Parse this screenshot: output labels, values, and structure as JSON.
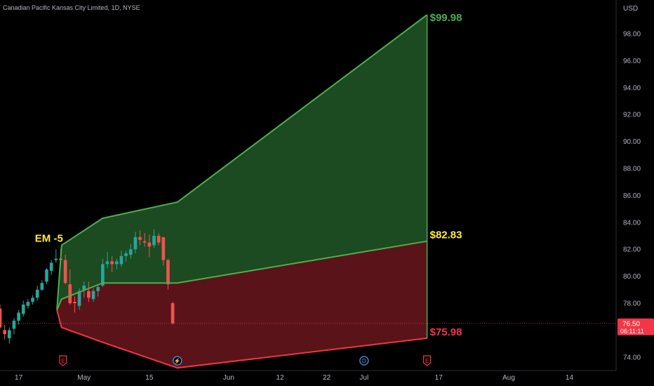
{
  "header": {
    "title": "Canadian Pacific Kansas City Limited, 1D, NYSE"
  },
  "axis": {
    "currency": "USD"
  },
  "chart_data": {
    "type": "candlestick_with_expected_move",
    "y_ticks": [
      "98.00",
      "96.00",
      "94.00",
      "92.00",
      "90.00",
      "88.00",
      "86.00",
      "84.00",
      "82.00",
      "80.00",
      "78.00",
      "76.00",
      "74.00"
    ],
    "ylim": [
      73.0,
      100.5
    ],
    "x_ticks": [
      {
        "label": "17",
        "day": 0
      },
      {
        "label": "May",
        "day": 14
      },
      {
        "label": "15",
        "day": 28
      },
      {
        "label": "Jun",
        "day": 45
      },
      {
        "label": "12",
        "day": 56
      },
      {
        "label": "22",
        "day": 66
      },
      {
        "label": "Jul",
        "day": 74
      },
      {
        "label": "17",
        "day": 90
      },
      {
        "label": "Aug",
        "day": 105
      },
      {
        "label": "14",
        "day": 118
      }
    ],
    "x_range_days": [
      -4,
      128
    ],
    "current_price": {
      "value": 76.5,
      "label": "76.50",
      "countdown": "06:11:11"
    },
    "expected_move": {
      "label": "EM -5",
      "upper": [
        [
          8.2,
          77.5
        ],
        [
          9.2,
          82.3
        ],
        [
          18,
          84.3
        ],
        [
          34,
          85.5
        ],
        [
          87.5,
          99.4
        ]
      ],
      "middle": [
        [
          8.2,
          77.5
        ],
        [
          9.2,
          78.3
        ],
        [
          18,
          79.5
        ],
        [
          34,
          79.5
        ],
        [
          87.5,
          82.6
        ]
      ],
      "lower": [
        [
          8.2,
          77.5
        ],
        [
          9.2,
          76.2
        ],
        [
          18,
          75.1
        ],
        [
          34,
          73.2
        ],
        [
          87.5,
          75.4
        ]
      ],
      "upper_label": "$99.98",
      "middle_label": "$82.83",
      "lower_label": "$75.98",
      "colors": {
        "upper_line": "#4caf50",
        "lower_line": "#f23645",
        "upper_fill": "#1c4a21",
        "lower_fill": "#5a1319",
        "middle_label": "#ffeb3b"
      }
    },
    "candles": [
      {
        "d": -4,
        "o": 77.6,
        "h": 77.9,
        "l": 76.1,
        "c": 76.2
      },
      {
        "d": -3,
        "o": 76.0,
        "h": 76.4,
        "l": 75.3,
        "c": 75.7
      },
      {
        "d": -2,
        "o": 75.4,
        "h": 76.2,
        "l": 75.0,
        "c": 76.0
      },
      {
        "d": -1,
        "o": 76.1,
        "h": 76.9,
        "l": 75.7,
        "c": 76.7
      },
      {
        "d": 0,
        "o": 76.7,
        "h": 77.5,
        "l": 76.4,
        "c": 77.3
      },
      {
        "d": 1,
        "o": 77.2,
        "h": 78.2,
        "l": 77.0,
        "c": 77.9
      },
      {
        "d": 2,
        "o": 77.8,
        "h": 78.3,
        "l": 77.6,
        "c": 78.1
      },
      {
        "d": 3,
        "o": 78.1,
        "h": 78.6,
        "l": 77.9,
        "c": 78.4
      },
      {
        "d": 4,
        "o": 78.4,
        "h": 79.3,
        "l": 78.2,
        "c": 79.0
      },
      {
        "d": 5,
        "o": 79.0,
        "h": 79.7,
        "l": 78.9,
        "c": 79.5
      },
      {
        "d": 6,
        "o": 79.6,
        "h": 80.6,
        "l": 79.4,
        "c": 80.5
      },
      {
        "d": 7,
        "o": 80.4,
        "h": 81.2,
        "l": 80.1,
        "c": 81.0
      },
      {
        "d": 8,
        "o": 81.2,
        "h": 82.0,
        "l": 81.0,
        "c": 81.3
      },
      {
        "d": 9,
        "o": 81.3,
        "h": 82.0,
        "l": 81.0,
        "c": 81.2
      },
      {
        "d": 10,
        "o": 81.2,
        "h": 81.6,
        "l": 79.4,
        "c": 79.5
      },
      {
        "d": 11,
        "o": 79.4,
        "h": 80.5,
        "l": 77.9,
        "c": 78.0
      },
      {
        "d": 12,
        "o": 78.1,
        "h": 78.5,
        "l": 77.3,
        "c": 78.0
      },
      {
        "d": 13,
        "o": 77.8,
        "h": 79.1,
        "l": 77.5,
        "c": 78.9
      },
      {
        "d": 14,
        "o": 79.0,
        "h": 79.6,
        "l": 78.4,
        "c": 79.3
      },
      {
        "d": 15,
        "o": 78.9,
        "h": 79.6,
        "l": 78.1,
        "c": 78.4
      },
      {
        "d": 16,
        "o": 78.3,
        "h": 79.1,
        "l": 78.1,
        "c": 78.9
      },
      {
        "d": 17,
        "o": 78.9,
        "h": 79.3,
        "l": 78.5,
        "c": 79.2
      },
      {
        "d": 18,
        "o": 79.3,
        "h": 81.3,
        "l": 79.2,
        "c": 80.9
      },
      {
        "d": 19,
        "o": 80.9,
        "h": 81.8,
        "l": 80.6,
        "c": 81.1
      },
      {
        "d": 20,
        "o": 81.1,
        "h": 81.5,
        "l": 80.3,
        "c": 80.9
      },
      {
        "d": 21,
        "o": 80.9,
        "h": 81.3,
        "l": 80.5,
        "c": 81.1
      },
      {
        "d": 22,
        "o": 80.9,
        "h": 81.9,
        "l": 80.7,
        "c": 81.5
      },
      {
        "d": 23,
        "o": 81.5,
        "h": 81.9,
        "l": 81.1,
        "c": 81.7
      },
      {
        "d": 24,
        "o": 81.6,
        "h": 82.4,
        "l": 81.3,
        "c": 82.0
      },
      {
        "d": 25,
        "o": 82.0,
        "h": 83.3,
        "l": 81.7,
        "c": 82.9
      },
      {
        "d": 26,
        "o": 82.9,
        "h": 83.4,
        "l": 82.3,
        "c": 82.7
      },
      {
        "d": 27,
        "o": 82.6,
        "h": 83.2,
        "l": 82.2,
        "c": 82.5
      },
      {
        "d": 28,
        "o": 82.5,
        "h": 83.1,
        "l": 81.4,
        "c": 82.2
      },
      {
        "d": 29,
        "o": 82.3,
        "h": 83.5,
        "l": 82.1,
        "c": 83.0
      },
      {
        "d": 30,
        "o": 83.0,
        "h": 83.2,
        "l": 82.3,
        "c": 82.5
      },
      {
        "d": 31,
        "o": 82.9,
        "h": 82.9,
        "l": 80.8,
        "c": 81.2
      },
      {
        "d": 32,
        "o": 81.2,
        "h": 81.3,
        "l": 79.0,
        "c": 79.4
      },
      {
        "d": 33,
        "o": 78.0,
        "h": 78.1,
        "l": 76.4,
        "c": 76.5
      }
    ],
    "event_markers": [
      {
        "label": "E",
        "day": 9.5,
        "color": "#f23645"
      },
      {
        "label": "⚡",
        "day": 34,
        "color": "#5b9cf6"
      },
      {
        "label": "D",
        "day": 74,
        "color": "#5b9cf6"
      },
      {
        "label": "E",
        "day": 87.5,
        "color": "#f23645"
      }
    ]
  }
}
